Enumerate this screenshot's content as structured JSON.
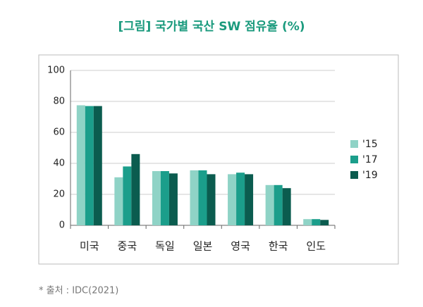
{
  "chart_data": {
    "type": "bar",
    "title": "[그림] 국가별 국산 SW 점유율 (%)",
    "categories": [
      "미국",
      "중국",
      "독일",
      "일본",
      "영국",
      "한국",
      "인도"
    ],
    "series": [
      {
        "name": "'15",
        "color": "#8fd3c6",
        "values": [
          77.5,
          31,
          35,
          35.5,
          33,
          26,
          4
        ]
      },
      {
        "name": "'17",
        "color": "#1b9e8b",
        "values": [
          77,
          38,
          35,
          35.5,
          34,
          26,
          4
        ]
      },
      {
        "name": "'19",
        "color": "#0b5c4f",
        "values": [
          77,
          46,
          33.5,
          33,
          33,
          24,
          3.5
        ]
      }
    ],
    "ylim": [
      0,
      100
    ],
    "yticks": [
      0,
      20,
      40,
      60,
      80,
      100
    ],
    "grid": true,
    "legend": "right",
    "source": "* 출처 : IDC(2021)"
  }
}
